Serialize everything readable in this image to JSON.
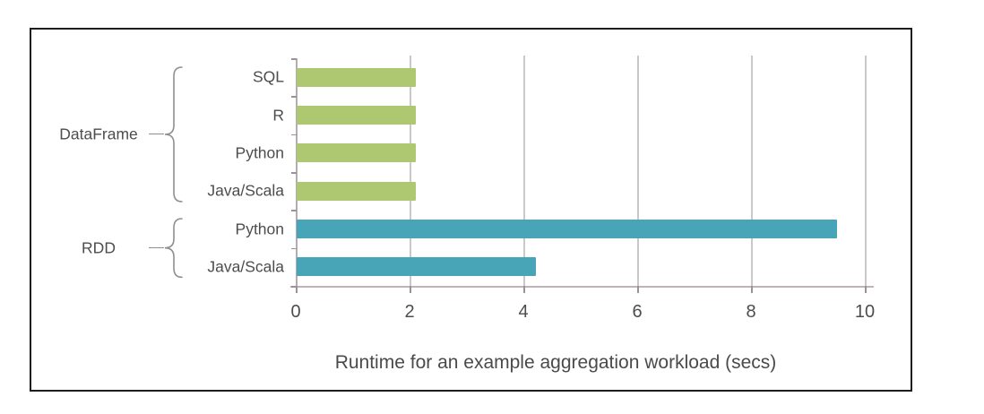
{
  "chart_data": {
    "type": "bar",
    "orientation": "horizontal",
    "title": "",
    "xlabel": "Runtime for an example aggregation workload (secs)",
    "ylabel": "",
    "xlim": [
      0,
      10
    ],
    "xticks": [
      0,
      2,
      4,
      6,
      8,
      10
    ],
    "grid": true,
    "legend": false,
    "groups": [
      {
        "name": "DataFrame",
        "color": "#aec871",
        "bars": [
          {
            "label": "SQL",
            "value": 2.1
          },
          {
            "label": "R",
            "value": 2.1
          },
          {
            "label": "Python",
            "value": 2.1
          },
          {
            "label": "Java/Scala",
            "value": 2.1
          }
        ]
      },
      {
        "name": "RDD",
        "color": "#48a4b7",
        "bars": [
          {
            "label": "Python",
            "value": 9.5
          },
          {
            "label": "Java/Scala",
            "value": 4.2
          }
        ]
      }
    ],
    "colors": {
      "dataframe_bar": "#aec871",
      "rdd_bar": "#48a4b7",
      "gridline": "#c9c9c9",
      "text": "#4d4d4d",
      "frame_border": "#1d1d1d",
      "brace": "#8f8f8f"
    }
  }
}
